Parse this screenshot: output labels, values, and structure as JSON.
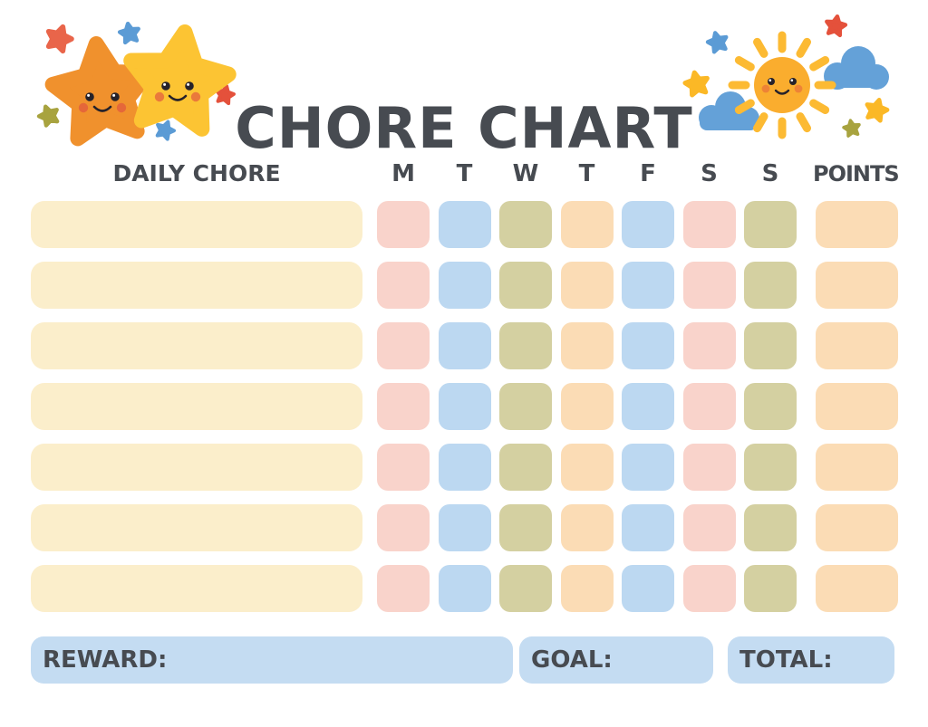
{
  "title": "CHORE CHART",
  "table": {
    "chore_header": "DAILY CHORE",
    "day_headers": [
      "M",
      "T",
      "W",
      "T",
      "F",
      "S",
      "S"
    ],
    "points_header": "POINTS",
    "row_count": 7,
    "day_cell_colors": [
      "pink",
      "blue",
      "olive",
      "peach",
      "blue",
      "pink",
      "olive"
    ],
    "points_cell_color": "peach"
  },
  "footer": {
    "reward_label": "REWARD:",
    "goal_label": "GOAL:",
    "total_label": "TOTAL:"
  },
  "decorations": {
    "left": "two-smiling-stars",
    "right": "smiling-sun-with-clouds"
  },
  "colors": {
    "text": "#474b51",
    "cream": "#fbeecb",
    "pink": "#f9d3cb",
    "blue": "#bcd8f1",
    "olive": "#d4d0a1",
    "peach": "#fbdcb5",
    "footer_blue": "#c4dcf2",
    "star_orange": "#f0912d",
    "star_yellow": "#fcc433",
    "mini_red_orange": "#e9654a",
    "mini_blue": "#5b9bd5",
    "mini_olive": "#a8a33f",
    "mini_red": "#e4513b",
    "mini_yellow": "#fbb826",
    "cloud_blue": "#64a1d8",
    "sun_body": "#faad2e",
    "sun_ray": "#fcba33",
    "blush": "#e25a3e",
    "face": "#26222a"
  }
}
